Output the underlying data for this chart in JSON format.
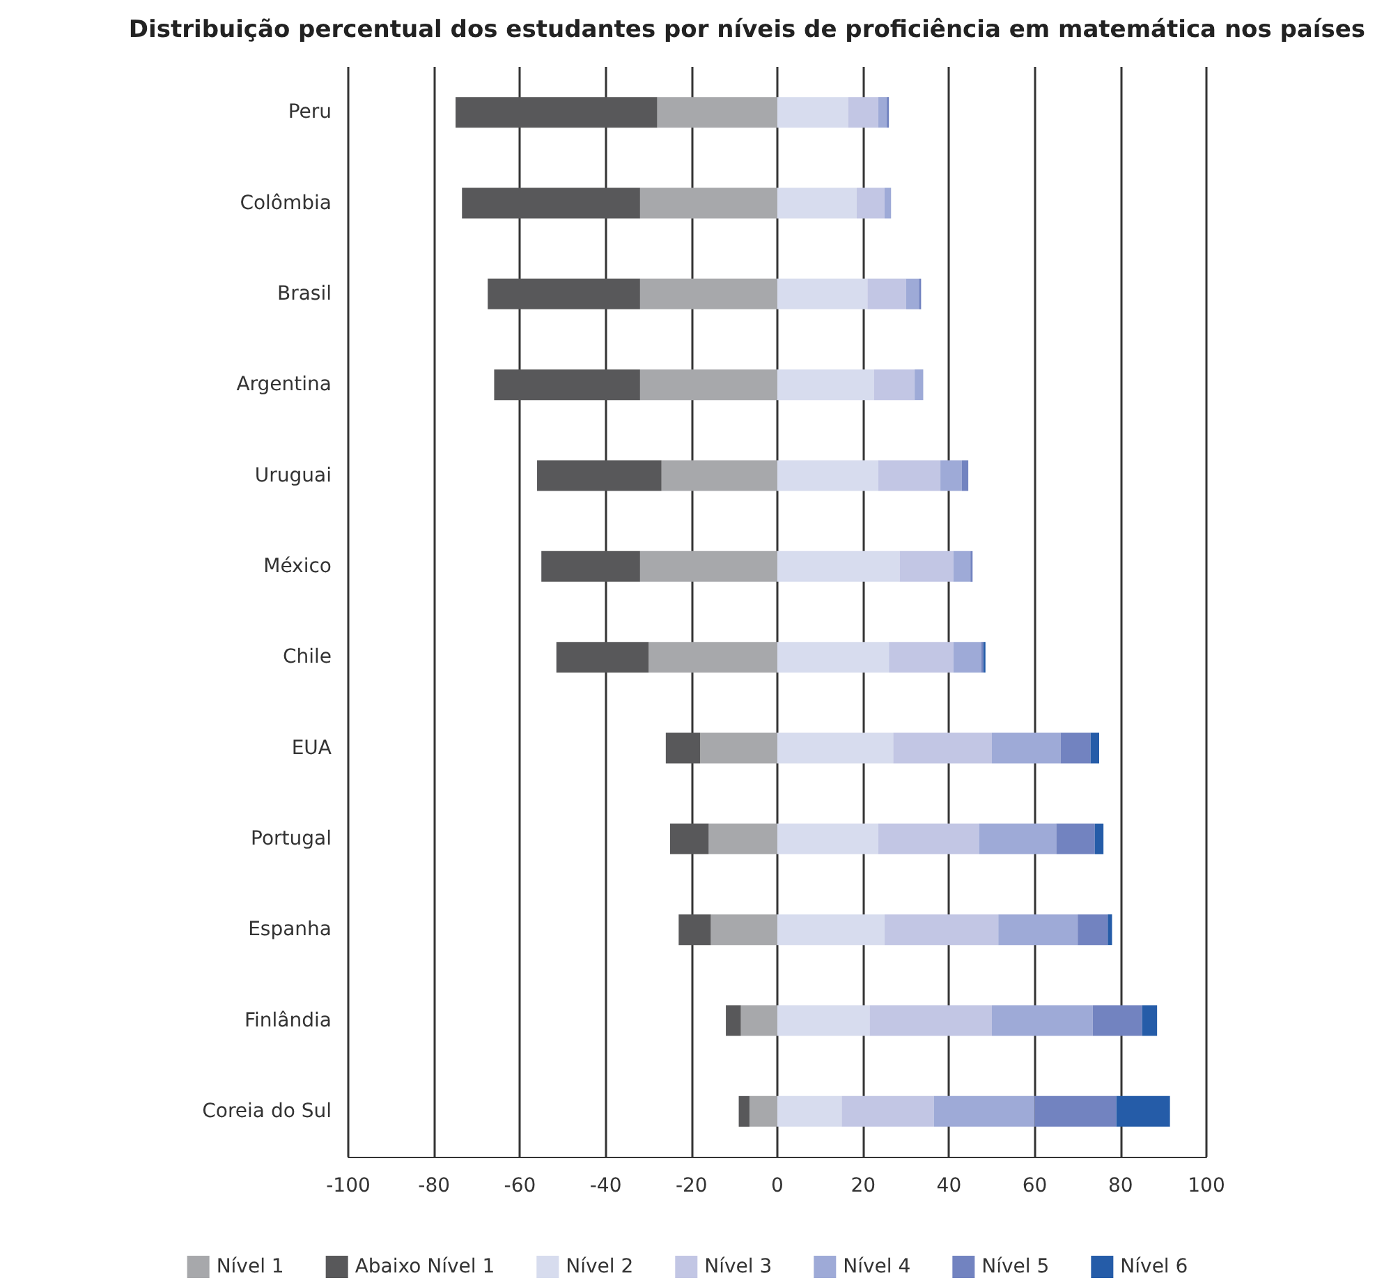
{
  "chart_data": {
    "type": "bar",
    "title": "Distribuição percentual dos estudantes por níveis de proficiência em matemática nos países",
    "orientation": "horizontal",
    "stacked": true,
    "categories": [
      "Peru",
      "Colômbia",
      "Brasil",
      "Argentina",
      "Uruguai",
      "México",
      "Chile",
      "EUA",
      "Portugal",
      "Espanha",
      "Finlândia",
      "Coreia do Sul"
    ],
    "series": [
      {
        "name": "Nível 1",
        "color": "#a7a8ab",
        "values": [
          -28,
          -32,
          -32,
          -32,
          -27,
          -32,
          -30,
          -18,
          -16,
          -15.5,
          -8.5,
          -6.5
        ]
      },
      {
        "name": "Abaixo Nível 1",
        "color": "#58585a",
        "values": [
          -47,
          -41.5,
          -35.5,
          -34,
          -29,
          -23,
          -21.5,
          -8,
          -9,
          -7.5,
          -3.5,
          -2.5
        ]
      },
      {
        "name": "Nível 2",
        "color": "#d7dcee",
        "values": [
          16.5,
          18.5,
          21,
          22.5,
          23.5,
          28.5,
          26,
          27,
          23.5,
          25,
          21.5,
          15
        ]
      },
      {
        "name": "Nível 3",
        "color": "#c2c6e4",
        "values": [
          7,
          6.5,
          9,
          9.5,
          14.5,
          12.5,
          15,
          23,
          23.5,
          26.5,
          28.5,
          21.5
        ]
      },
      {
        "name": "Nível 4",
        "color": "#9eaad7",
        "values": [
          2,
          1.5,
          3,
          2,
          5,
          4,
          6.5,
          16,
          18,
          18.5,
          23.5,
          23.5
        ]
      },
      {
        "name": "Nível 5",
        "color": "#7283c0",
        "values": [
          0.5,
          0,
          0.5,
          0,
          1.5,
          0.5,
          0.5,
          7,
          9,
          7,
          11.5,
          19
        ]
      },
      {
        "name": "Nível 6",
        "color": "#255ca8",
        "values": [
          0,
          0,
          0,
          0,
          0,
          0,
          0.5,
          2,
          2,
          1,
          3.5,
          12.5
        ]
      }
    ],
    "xlim": [
      -100,
      100
    ],
    "xticks": [
      -100,
      -80,
      -60,
      -40,
      -20,
      0,
      20,
      40,
      60,
      80,
      100
    ],
    "grid": "x",
    "legend": "bottom"
  }
}
